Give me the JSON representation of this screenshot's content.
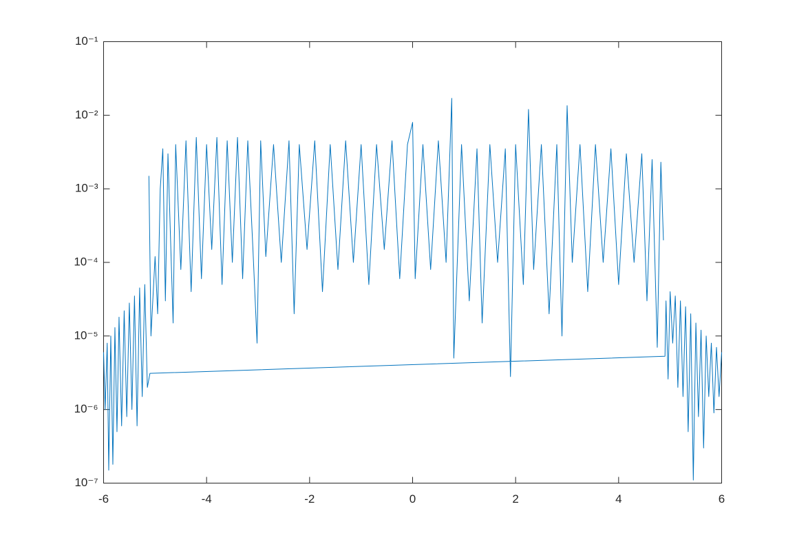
{
  "chart_data": {
    "type": "line",
    "color": "#0072bd",
    "yscale": "log",
    "xlim": [
      -6,
      6
    ],
    "xticks": [
      -6,
      -4,
      -2,
      0,
      2,
      4,
      6
    ],
    "ylim": [
      1e-07,
      0.1
    ],
    "yticks": [
      {
        "value": 1e-07,
        "label": "10⁻⁷"
      },
      {
        "value": 1e-06,
        "label": "10⁻⁶"
      },
      {
        "value": 1e-05,
        "label": "10⁻⁵"
      },
      {
        "value": 0.0001,
        "label": "10⁻⁴"
      },
      {
        "value": 0.001,
        "label": "10⁻³"
      },
      {
        "value": 0.01,
        "label": "10⁻²"
      },
      {
        "value": 0.1,
        "label": "10⁻¹"
      }
    ],
    "x": [
      -6.0,
      -5.97,
      -5.93,
      -5.9,
      -5.86,
      -5.82,
      -5.78,
      -5.74,
      -5.7,
      -5.65,
      -5.6,
      -5.55,
      -5.5,
      -5.45,
      -5.4,
      -5.35,
      -5.3,
      -5.25,
      -5.2,
      -5.15,
      -5.1,
      4.9,
      4.92,
      4.96,
      5.0,
      5.05,
      5.1,
      5.15,
      5.2,
      5.25,
      5.3,
      5.35,
      5.4,
      5.45,
      5.5,
      5.55,
      5.6,
      5.65,
      5.7,
      5.75,
      5.8,
      5.85,
      5.9,
      5.95,
      6.0,
      6.0,
      -5.12,
      -5.08,
      -5.0,
      -4.95,
      -4.9,
      -4.85,
      -4.8,
      -4.75,
      -4.65,
      -4.6,
      -4.5,
      -4.4,
      -4.3,
      -4.2,
      -4.1,
      -4.0,
      -3.9,
      -3.8,
      -3.7,
      -3.6,
      -3.5,
      -3.4,
      -3.3,
      -3.2,
      -3.1,
      -3.02,
      -2.95,
      -2.85,
      -2.7,
      -2.55,
      -2.4,
      -2.3,
      -2.2,
      -2.05,
      -1.9,
      -1.75,
      -1.6,
      -1.45,
      -1.3,
      -1.15,
      -1.0,
      -0.85,
      -0.7,
      -0.55,
      -0.4,
      -0.25,
      -0.1,
      0.0,
      0.05,
      0.2,
      0.35,
      0.5,
      0.65,
      0.76,
      0.8,
      0.95,
      1.1,
      1.25,
      1.35,
      1.5,
      1.65,
      1.8,
      1.9,
      2.0,
      2.15,
      2.25,
      2.35,
      2.5,
      2.65,
      2.8,
      2.9,
      3.0,
      3.1,
      3.25,
      3.4,
      3.55,
      3.7,
      3.85,
      4.0,
      4.15,
      4.3,
      4.45,
      4.55,
      4.65,
      4.75,
      4.82,
      4.87
    ],
    "values": [
      6e-06,
      1e-06,
      8e-06,
      1.5e-07,
      1e-05,
      1.8e-07,
      1.3e-05,
      5e-07,
      1.8e-05,
      6e-07,
      2.2e-05,
      8e-07,
      2.8e-05,
      1e-06,
      3.5e-05,
      6e-07,
      4.5e-05,
      1.5e-06,
      5e-05,
      2e-06,
      3.1e-06,
      5.3e-06,
      3e-05,
      2.6e-06,
      4e-05,
      8e-06,
      3.5e-05,
      2e-06,
      3e-05,
      1.5e-06,
      2.5e-05,
      5e-07,
      2e-05,
      1.1e-07,
      1.5e-05,
      8e-07,
      1.2e-05,
      3e-07,
      1e-05,
      1.5e-06,
      8e-06,
      9e-07,
      7e-06,
      1.5e-06,
      6e-06,
      null,
      0.0015,
      1e-05,
      0.00012,
      2e-05,
      0.001,
      0.0035,
      3e-05,
      0.003,
      1.5e-05,
      0.004,
      8e-05,
      0.0045,
      4e-05,
      0.005,
      6e-05,
      0.004,
      0.00015,
      0.005,
      5e-05,
      0.0045,
      0.0001,
      0.005,
      6e-05,
      0.0045,
      0.00015,
      8e-06,
      0.0045,
      0.00012,
      0.004,
      0.0001,
      0.0045,
      2e-05,
      0.004,
      0.00015,
      0.0045,
      4e-05,
      0.004,
      8e-05,
      0.0045,
      0.0001,
      0.004,
      5e-05,
      0.004,
      0.00015,
      0.0045,
      6e-05,
      0.004,
      0.008,
      6e-05,
      0.004,
      8e-05,
      0.0045,
      0.0001,
      0.017,
      5e-06,
      0.004,
      3e-05,
      0.0035,
      1.5e-05,
      0.004,
      0.0001,
      0.0035,
      2.8e-06,
      0.004,
      5e-05,
      0.012,
      8e-05,
      0.004,
      2e-05,
      0.004,
      1e-05,
      0.0135,
      0.0001,
      0.004,
      4e-05,
      0.004,
      0.0001,
      0.0035,
      5e-05,
      0.003,
      0.0001,
      0.003,
      3e-05,
      0.0025,
      7e-06,
      0.0023,
      0.0002
    ]
  }
}
